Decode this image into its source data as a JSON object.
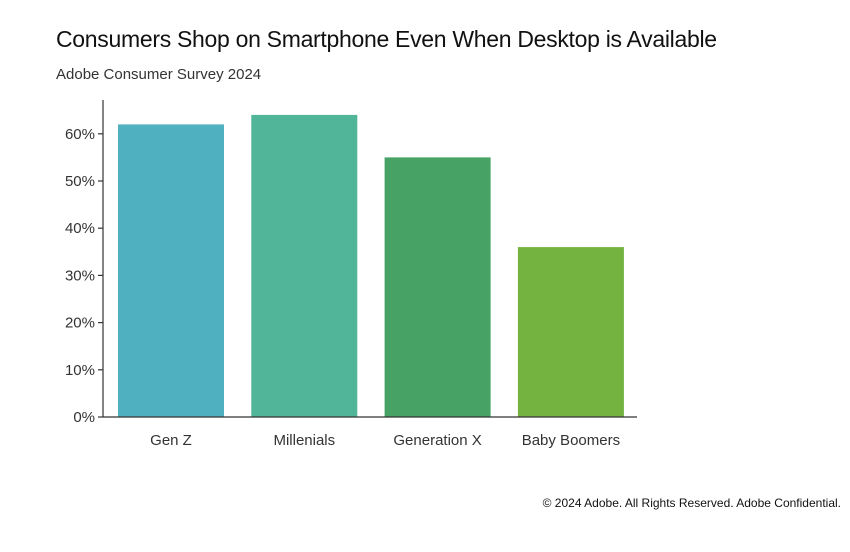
{
  "chart_data": {
    "type": "bar",
    "title": "Consumers Shop on Smartphone Even When Desktop is Available",
    "subtitle": "Adobe Consumer Survey 2024",
    "categories": [
      "Gen Z",
      "Millenials",
      "Generation X",
      "Baby Boomers"
    ],
    "values": [
      62,
      64,
      55,
      36
    ],
    "colors": [
      "#4fb0c0",
      "#50b599",
      "#47a265",
      "#75b340"
    ],
    "ylim": [
      0,
      68
    ],
    "yticks": [
      0,
      10,
      20,
      30,
      40,
      50,
      60
    ],
    "ytick_labels": [
      "0%",
      "10%",
      "20%",
      "30%",
      "40%",
      "50%",
      "60%"
    ],
    "xlabel": "",
    "ylabel": "",
    "grid": false,
    "legend": "none"
  },
  "footer": {
    "text": "© 2024 Adobe. All Rights Reserved. Adobe Confidential."
  }
}
